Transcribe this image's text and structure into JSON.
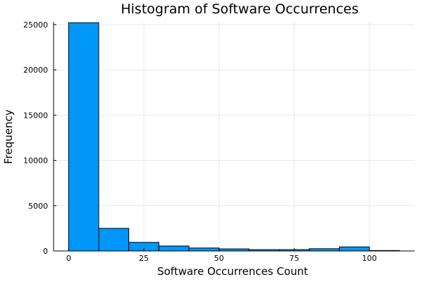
{
  "chart_data": {
    "type": "bar",
    "title": "Histogram of Software Occurrences",
    "xlabel": "Software Occurrences Count",
    "ylabel": "Frequency",
    "bin_edges": [
      0,
      10,
      20,
      30,
      40,
      50,
      60,
      70,
      80,
      90,
      100,
      110
    ],
    "values": [
      25200,
      2500,
      950,
      550,
      330,
      230,
      150,
      150,
      250,
      450,
      50
    ],
    "xlim": [
      -5,
      115
    ],
    "ylim": [
      0,
      25300
    ],
    "xticks": [
      0,
      25,
      50,
      75,
      100
    ],
    "yticks": [
      0,
      5000,
      10000,
      15000,
      20000,
      25000
    ],
    "grid": true,
    "bar_color": "#0097f9",
    "legend": "none"
  }
}
